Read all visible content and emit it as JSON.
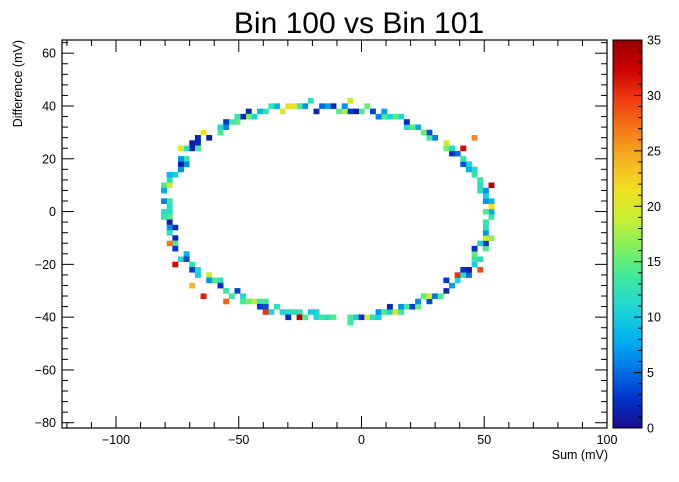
{
  "chart_data": {
    "type": "heatmap",
    "title": "Bin 100 vs Bin 101",
    "xlabel": "Sum (mV)",
    "ylabel": "Difference (mV)",
    "xlim": [
      -122,
      100
    ],
    "ylim": [
      -82,
      65
    ],
    "x_ticks": [
      -100,
      -50,
      0,
      50,
      100
    ],
    "y_ticks": [
      -80,
      -60,
      -40,
      -20,
      0,
      20,
      40,
      60
    ],
    "x_tick_labels": [
      "−100",
      "−50",
      "0",
      "50",
      "100"
    ],
    "y_tick_labels": [
      "−80",
      "−60",
      "−40",
      "−20",
      "0",
      "20",
      "40",
      "60"
    ],
    "colorbar": {
      "range": [
        0,
        35
      ],
      "ticks": [
        0,
        5,
        10,
        15,
        20,
        25,
        30,
        35
      ],
      "tick_labels": [
        "0",
        "5",
        "10",
        "15",
        "20",
        "25",
        "30",
        "35"
      ],
      "palette": [
        "#1a0f8c",
        "#0033cc",
        "#0077e6",
        "#00b2f0",
        "#1ed6d6",
        "#3ce8a0",
        "#7cf060",
        "#c8f030",
        "#f0e020",
        "#f5b020",
        "#f57a18",
        "#f03c10",
        "#cc0000",
        "#990000"
      ]
    },
    "grid": false,
    "ring": {
      "cx": -14,
      "cy": 0,
      "rx": 66,
      "ry": 40,
      "rotation_deg": -4,
      "bin_width": 2.3,
      "bin_height": 2.0
    },
    "hot_spots": [
      {
        "x": 42,
        "y": 24,
        "v": 32
      },
      {
        "x": 52,
        "y": 10,
        "v": 33
      },
      {
        "x": 47,
        "y": 28,
        "v": 26
      },
      {
        "x": -77,
        "y": -20,
        "v": 32
      },
      {
        "x": -78,
        "y": -12,
        "v": 27
      },
      {
        "x": -65,
        "y": -32,
        "v": 31
      },
      {
        "x": -55,
        "y": -35,
        "v": 28
      },
      {
        "x": -25,
        "y": -41,
        "v": 33
      },
      {
        "x": -40,
        "y": -38,
        "v": 30
      },
      {
        "x": 40,
        "y": -25,
        "v": 30
      },
      {
        "x": 48,
        "y": -22,
        "v": 29
      },
      {
        "x": -70,
        "y": -29,
        "v": 24
      },
      {
        "x": 53,
        "y": 2,
        "v": 21
      },
      {
        "x": -79,
        "y": 10,
        "v": 20
      },
      {
        "x": -5,
        "y": 41,
        "v": 19
      }
    ]
  }
}
